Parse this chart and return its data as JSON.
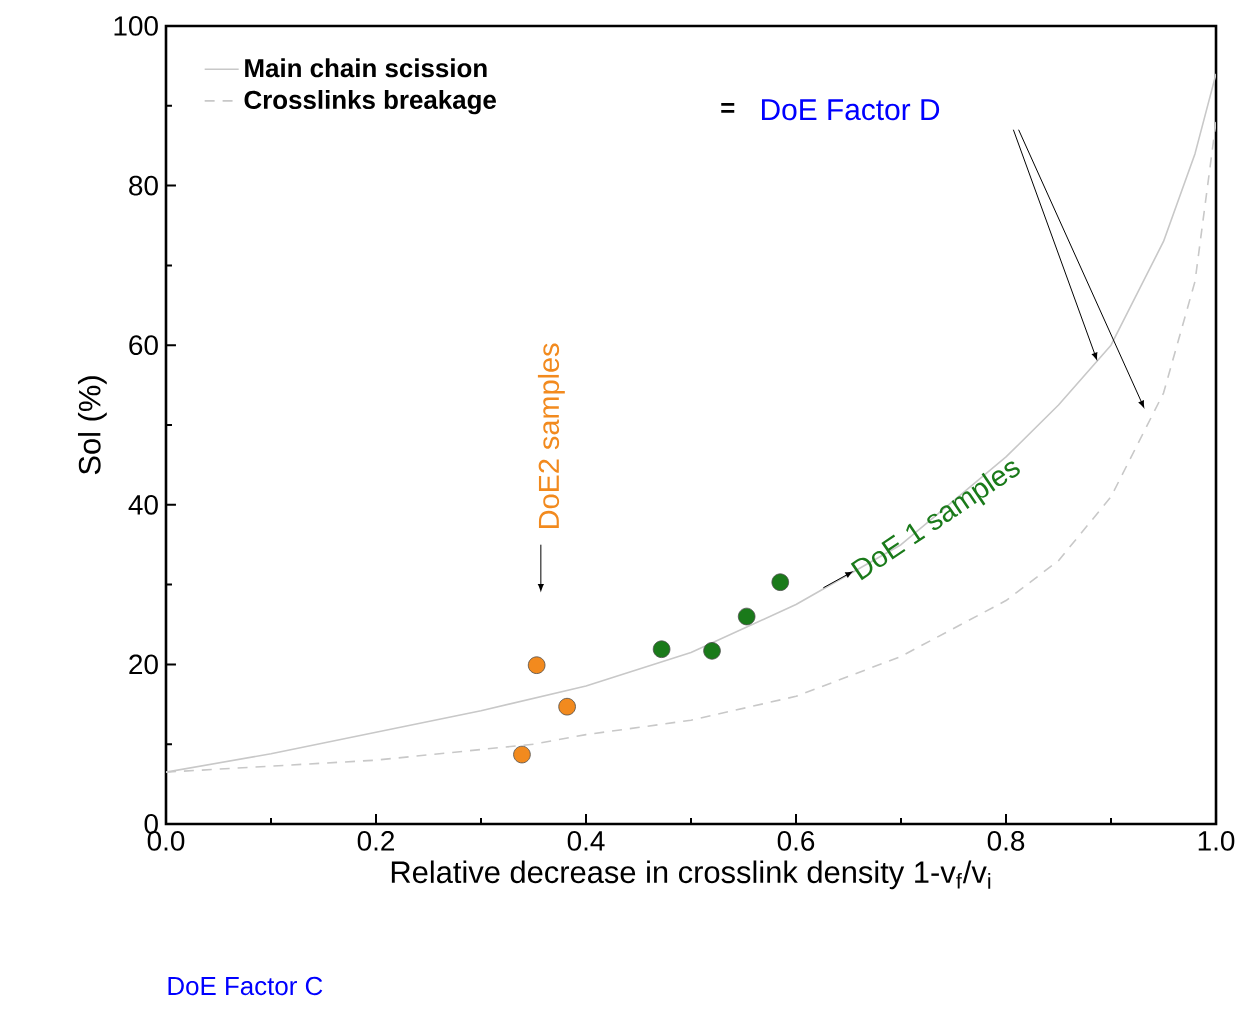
{
  "chart_data": {
    "type": "line",
    "xlabel": "Relative decrease in crosslink density 1-v$_{f}$/v$_{i}$",
    "ylabel": "Sol (%)",
    "xlim": [
      0,
      1
    ],
    "ylim": [
      0,
      100
    ],
    "xticks": [
      {
        "value": 0,
        "label": "0.0"
      },
      {
        "value": 0.2,
        "label": "0.2"
      },
      {
        "value": 0.4,
        "label": "0.4"
      },
      {
        "value": 0.6,
        "label": "0.6"
      },
      {
        "value": 0.8,
        "label": "0.8"
      },
      {
        "value": 1,
        "label": "1.0"
      }
    ],
    "yticks": [
      0,
      20,
      40,
      60,
      80,
      100
    ],
    "legend": "top left",
    "grid": false,
    "series": [
      {
        "name": "Main chain scission",
        "line_style": "solid",
        "color": "#c8c8c8",
        "x": [
          0,
          0.1,
          0.2,
          0.3,
          0.4,
          0.5,
          0.6,
          0.7,
          0.8,
          0.85,
          0.9,
          0.95,
          0.98,
          1.0
        ],
        "values": [
          6.5,
          8.8,
          11.5,
          14.2,
          17.3,
          21.5,
          27.5,
          35,
          46,
          52.5,
          60,
          73,
          84,
          94
        ]
      },
      {
        "name": "Crosslinks breakage",
        "line_style": "dashed",
        "color": "#c8c8c8",
        "x": [
          0,
          0.2,
          0.35,
          0.4,
          0.5,
          0.6,
          0.7,
          0.8,
          0.85,
          0.9,
          0.95,
          0.98,
          1.0
        ],
        "values": [
          6.5,
          8,
          10,
          11.2,
          13,
          16,
          21,
          28,
          33,
          41,
          54,
          68,
          88
        ]
      },
      {
        "name": "DoE2 samples",
        "type": "scatter",
        "marker": "circle",
        "color": "#f28a1e",
        "x": [
          0.339,
          0.353,
          0.382
        ],
        "values": [
          8.7,
          19.9,
          14.7
        ]
      },
      {
        "name": "DoE 1 samples",
        "type": "scatter",
        "marker": "circle",
        "color": "#1a7a1a",
        "x": [
          0.472,
          0.52,
          0.553,
          0.585
        ],
        "values": [
          21.9,
          21.7,
          26.0,
          30.3
        ]
      }
    ],
    "annotations": [
      "=",
      "DoE Factor D",
      "DoE Factor C"
    ]
  }
}
